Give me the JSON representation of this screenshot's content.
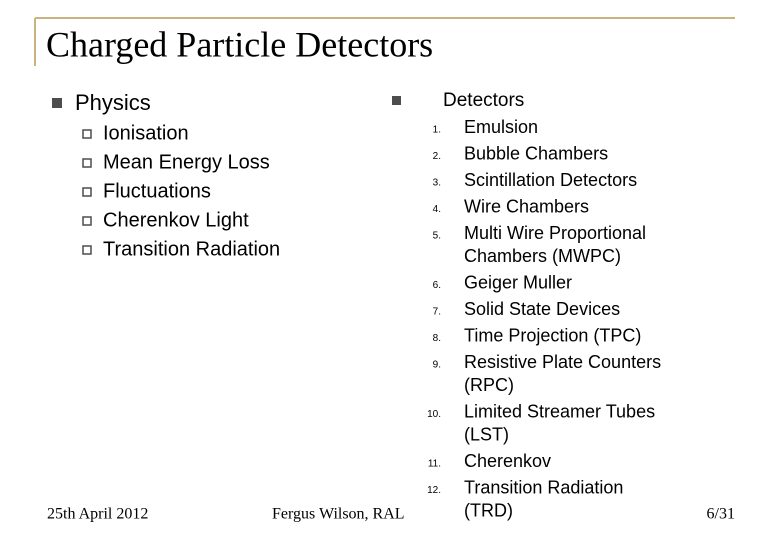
{
  "title": "Charged Particle Detectors",
  "left": {
    "heading": "Physics",
    "items": [
      "Ionisation",
      "Mean Energy Loss",
      "Fluctuations",
      "Cherenkov Light",
      "Transition Radiation"
    ]
  },
  "right": {
    "heading": "Detectors",
    "items": [
      {
        "number": "1.",
        "lines": [
          "Emulsion"
        ]
      },
      {
        "number": "2.",
        "lines": [
          "Bubble Chambers"
        ]
      },
      {
        "number": "3.",
        "lines": [
          "Scintillation Detectors"
        ]
      },
      {
        "number": "4.",
        "lines": [
          "Wire Chambers"
        ]
      },
      {
        "number": "5.",
        "lines": [
          "Multi Wire Proportional",
          "Chambers (MWPC)"
        ]
      },
      {
        "number": "6.",
        "lines": [
          "Geiger Muller"
        ]
      },
      {
        "number": "7.",
        "lines": [
          "Solid State Devices"
        ]
      },
      {
        "number": "8.",
        "lines": [
          "Time Projection (TPC)"
        ]
      },
      {
        "number": "9.",
        "lines": [
          "Resistive Plate Counters",
          "(RPC)"
        ]
      },
      {
        "number": "10.",
        "lines": [
          "Limited Streamer Tubes",
          "(LST)"
        ]
      },
      {
        "number": "11.",
        "lines": [
          "Cherenkov"
        ]
      },
      {
        "number": "12.",
        "lines": [
          "Transition Radiation",
          "(TRD)"
        ]
      }
    ]
  },
  "footer": {
    "date": "25th April 2012",
    "author": "Fergus Wilson, RAL",
    "page": "6/31"
  }
}
